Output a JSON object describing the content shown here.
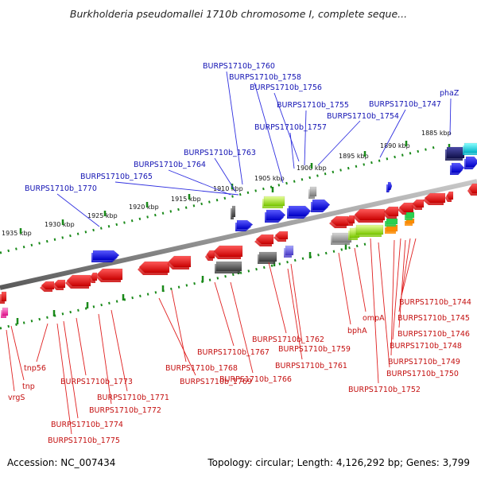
{
  "title": "Burkholderia pseudomallei 1710b chromosome I, complete seque...",
  "footer": {
    "accession": "Accession: NC_007434",
    "stats": "Topology: circular; Length: 4,126,292 bp; Genes: 3,799"
  },
  "kbp_ticks": [
    "1885 kbp",
    "1890 kbp",
    "1895 kbp",
    "1900 kbp",
    "1905 kbp",
    "1910 kbp",
    "1915 kbp",
    "1920 kbp",
    "1925 kbp",
    "1930 kbp",
    "1935 kbp"
  ],
  "top_labels": [
    "phaZ",
    "BURPS1710b_1747",
    "BURPS1710b_1754",
    "BURPS1710b_1755",
    "BURPS1710b_1756",
    "BURPS1710b_1757",
    "BURPS1710b_1758",
    "BURPS1710b_1760",
    "BURPS1710b_1763",
    "BURPS1710b_1764",
    "BURPS1710b_1765",
    "BURPS1710b_1770"
  ],
  "bottom_labels": [
    "BURPS1710b_1744",
    "BURPS1710b_1745",
    "BURPS1710b_1746",
    "BURPS1710b_1748",
    "BURPS1710b_1749",
    "BURPS1710b_1750",
    "BURPS1710b_1752",
    "ompA",
    "bphA",
    "BURPS1710b_1762",
    "BURPS1710b_1759",
    "BURPS1710b_1761",
    "BURPS1710b_1767",
    "BURPS1710b_1768",
    "BURPS1710b_1769",
    "BURPS1710b_1766",
    "BURPS1710b_1773",
    "BURPS1710b_1771",
    "BURPS1710b_1772",
    "BURPS1710b_1774",
    "BURPS1710b_1775",
    "tnp56",
    "tnp",
    "vrgS"
  ],
  "colors": {
    "forward_gene": "#1a1aee",
    "reverse_gene": "#ee1111",
    "backbone": "#8a8a8a",
    "tick": "#1a8a1a",
    "label_top": "#1414b4",
    "label_bottom": "#c41010"
  }
}
